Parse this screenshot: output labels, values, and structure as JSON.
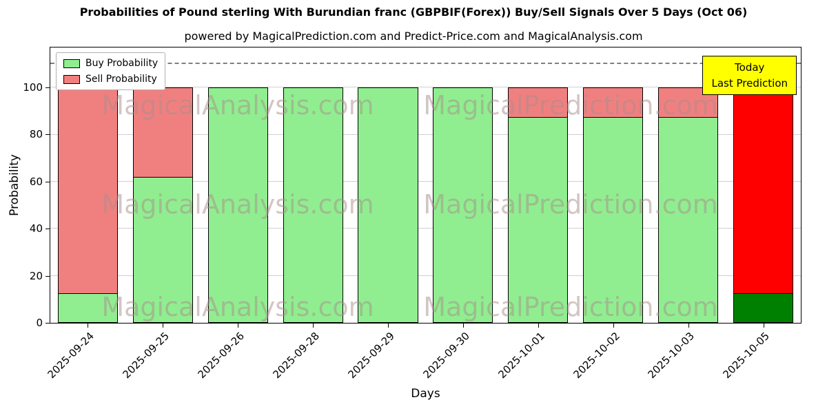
{
  "title": "Probabilities of Pound sterling With Burundian franc (GBPBIF(Forex)) Buy/Sell Signals Over 5 Days (Oct 06)",
  "subtitle": "powered by MagicalPrediction.com and Predict-Price.com and MagicalAnalysis.com",
  "annotation": {
    "line1": "Today",
    "line2": "Last Prediction",
    "background": "#ffff00"
  },
  "watermarks": [
    "MagicalAnalysis.com",
    "MagicalPrediction.com"
  ],
  "chart_data": {
    "type": "bar",
    "stacked": true,
    "title": "Probabilities of Pound sterling With Burundian franc (GBPBIF(Forex)) Buy/Sell Signals Over 5 Days (Oct 06)",
    "categories": [
      "2025-09-24",
      "2025-09-25",
      "2025-09-26",
      "2025-09-28",
      "2025-09-29",
      "2025-09-30",
      "2025-10-01",
      "2025-10-02",
      "2025-10-03",
      "2025-10-05"
    ],
    "series": [
      {
        "name": "Buy Probability",
        "color": "#90ee90",
        "values": [
          12.5,
          62,
          100,
          100,
          100,
          100,
          87.5,
          87.5,
          87.5,
          12.5
        ]
      },
      {
        "name": "Sell Probability",
        "color": "#f08080",
        "values": [
          87.5,
          38,
          0,
          0,
          0,
          0,
          12.5,
          12.5,
          12.5,
          87.5
        ]
      }
    ],
    "highlight_last": {
      "buy_color": "#008000",
      "sell_color": "#ff0000"
    },
    "xlabel": "Days",
    "ylabel": "Probability",
    "yticks": [
      0,
      20,
      40,
      60,
      80,
      100
    ],
    "ylim": [
      0,
      117
    ],
    "dashed_line_y": 110,
    "grid": true,
    "legend_position": "upper left"
  }
}
